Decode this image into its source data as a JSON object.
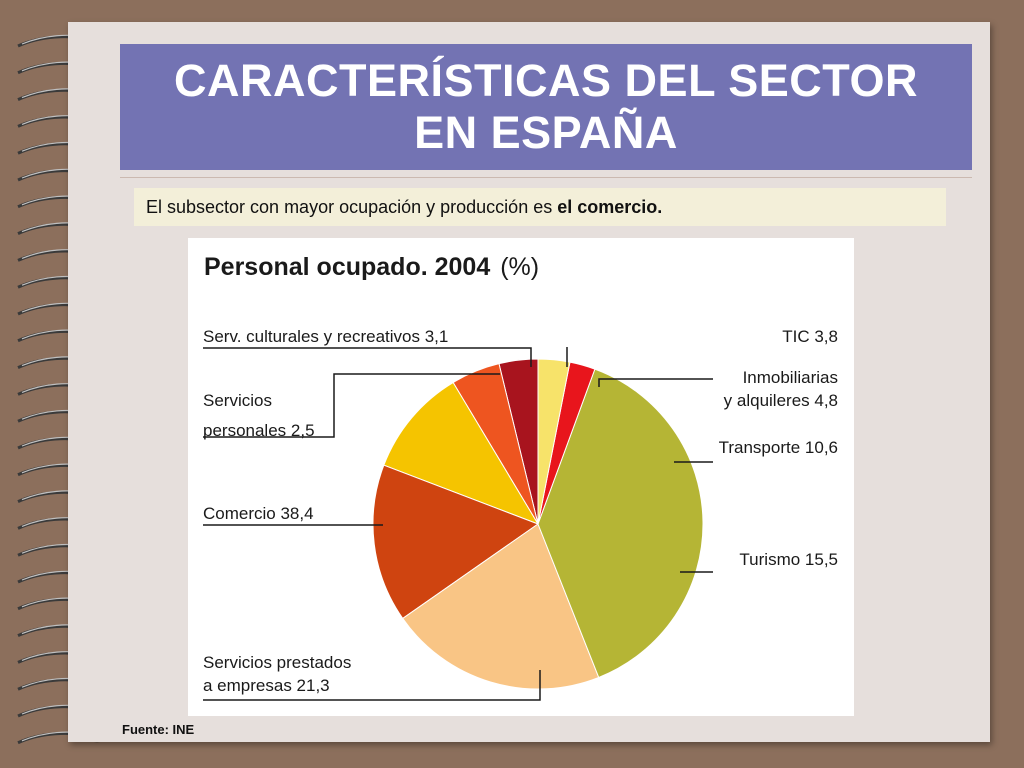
{
  "slide": {
    "title_line1": "CARACTERÍSTICAS DEL SECTOR",
    "title_line2": "EN ESPAÑA",
    "subtitle_prefix": "El subsector con mayor ocupación y producción es ",
    "subtitle_bold": "el comercio.",
    "source": "Fuente: INE"
  },
  "colors": {
    "background": "#8c6f5c",
    "page": "#e6dfdc",
    "title_bar": "#7373b3",
    "subtitle_bar": "#f3efd9"
  },
  "chart_data": {
    "type": "pie",
    "title": "Personal ocupado. 2004 (%)",
    "title_bold_part": "Personal ocupado. 2004",
    "title_unit_part": "(%)",
    "start": "12 o'clock",
    "direction": "counter-clockwise",
    "slices": [
      {
        "label_lines": [
          "TIC 3,8"
        ],
        "value": 3.8,
        "color": "#a8141e"
      },
      {
        "label_lines": [
          "Inmobiliarias",
          "y alquileres 4,8"
        ],
        "value": 4.8,
        "color": "#ee5520"
      },
      {
        "label_lines": [
          "Transporte 10,6"
        ],
        "value": 10.6,
        "color": "#f5c400"
      },
      {
        "label_lines": [
          "Turismo 15,5"
        ],
        "value": 15.5,
        "color": "#cf4410"
      },
      {
        "label_lines": [
          "Servicios prestados",
          "a empresas 21,3"
        ],
        "value": 21.3,
        "color": "#f9c585"
      },
      {
        "label_lines": [
          "Comercio 38,4"
        ],
        "value": 38.4,
        "color": "#b5b535"
      },
      {
        "label_lines": [
          "Servicios",
          "personales 2,5"
        ],
        "value": 2.5,
        "color": "#e8151c"
      },
      {
        "label_lines": [
          "Serv. culturales y recreativos 3,1"
        ],
        "value": 3.1,
        "color": "#f7e36a"
      }
    ]
  }
}
